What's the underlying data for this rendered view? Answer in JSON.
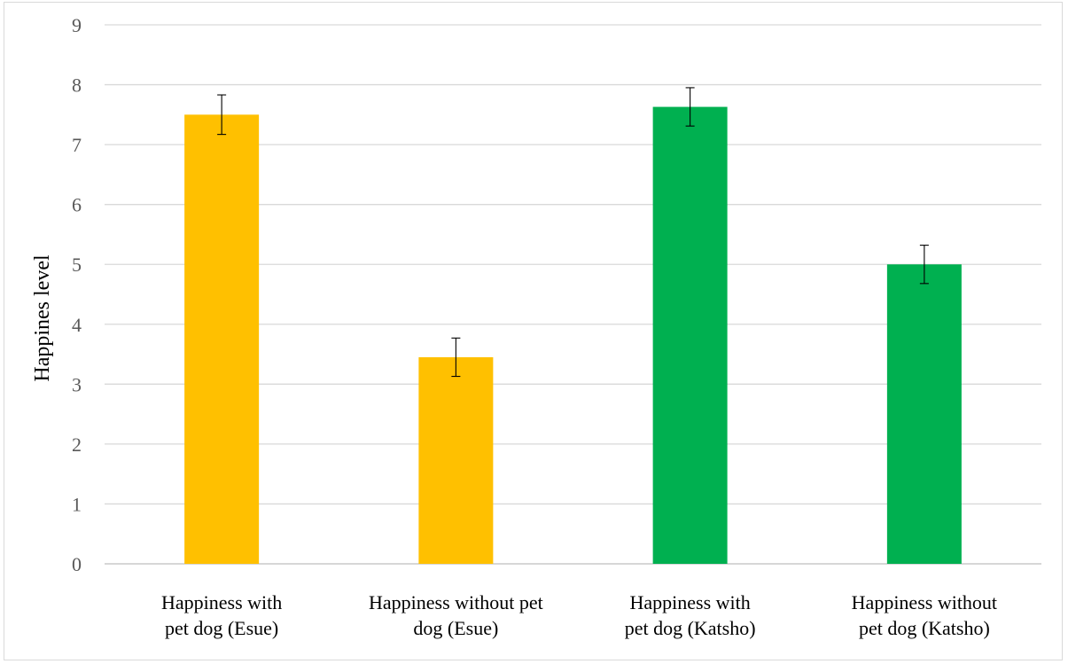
{
  "chart_data": {
    "type": "bar",
    "ylabel": "Happines level",
    "xlabel": "",
    "ylim": [
      0,
      9
    ],
    "yticks": [
      "0",
      "1",
      "2",
      "3",
      "4",
      "5",
      "6",
      "7",
      "8",
      "9"
    ],
    "grid": true,
    "legend": "none",
    "categories": [
      [
        "Happiness with",
        "pet  dog (Esue)"
      ],
      [
        "Happiness without pet",
        "dog (Esue)"
      ],
      [
        "Happiness with",
        "pet dog (Katsho)"
      ],
      [
        "Happiness without",
        "pet dog (Katsho)"
      ]
    ],
    "values": [
      7.5,
      3.45,
      7.63,
      5.0
    ],
    "error_bars": [
      0.33,
      0.32,
      0.32,
      0.32
    ],
    "colors": [
      "#ffc000",
      "#ffc000",
      "#00b050",
      "#00b050"
    ]
  }
}
